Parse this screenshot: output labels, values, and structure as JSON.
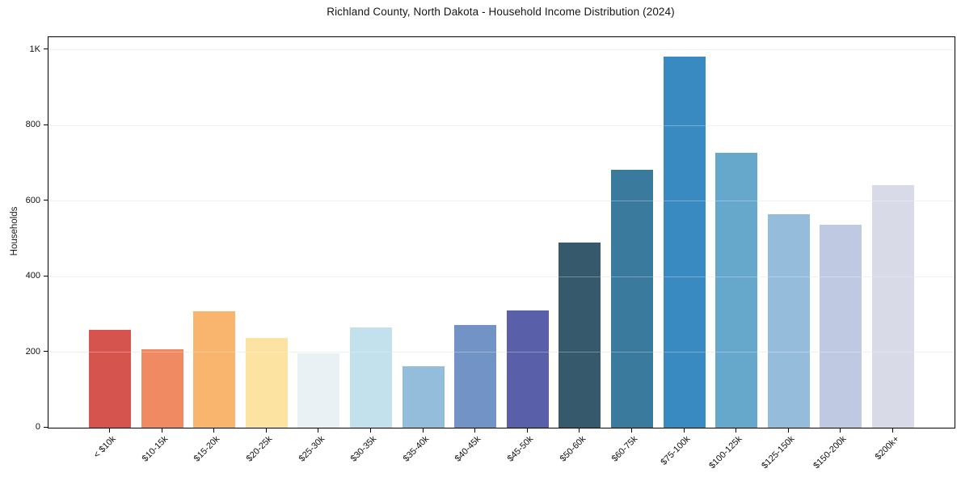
{
  "chart_data": {
    "type": "bar",
    "title": "Richland County, North Dakota - Household Income Distribution (2024)",
    "xlabel": "",
    "ylabel": "Households",
    "categories": [
      "< $10k",
      "$10-15k",
      "$15-20k",
      "$20-25k",
      "$25-30k",
      "$30-35k",
      "$35-40k",
      "$40-45k",
      "$45-50k",
      "$50-60k",
      "$60-75k",
      "$75-100k",
      "$100-125k",
      "$125-150k",
      "$150-200k",
      "$200k+"
    ],
    "values": [
      258,
      207,
      308,
      237,
      197,
      265,
      163,
      272,
      310,
      490,
      683,
      981,
      728,
      564,
      536,
      642
    ],
    "bar_colors": [
      "#d5554e",
      "#f08a63",
      "#f9b46d",
      "#fde3a2",
      "#e9f1f4",
      "#c3e0ed",
      "#93bddb",
      "#7193c5",
      "#5a5fa9",
      "#36596c",
      "#3a7a9d",
      "#398ac0",
      "#66a7cc",
      "#96bcdc",
      "#bfcae2",
      "#d9dae8"
    ],
    "ylim": [
      0,
      1000
    ],
    "yticks": [
      {
        "value": 0,
        "label": "0"
      },
      {
        "value": 200,
        "label": "200"
      },
      {
        "value": 400,
        "label": "400"
      },
      {
        "value": 600,
        "label": "600"
      },
      {
        "value": 800,
        "label": "800"
      },
      {
        "value": 1000,
        "label": "1K"
      }
    ],
    "grid": "horizontal",
    "legend": "none",
    "background_color": "#ffffff",
    "frame_color": "#000000",
    "gridline_color": "#ebebeb",
    "text_color": "#111111"
  }
}
